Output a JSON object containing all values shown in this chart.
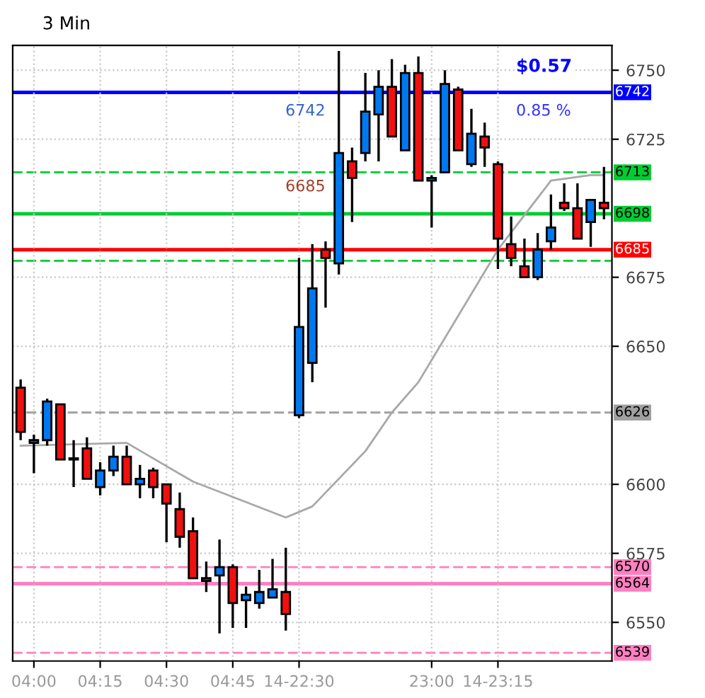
{
  "chart_data": {
    "type": "candlestick",
    "title": "3 Min",
    "categories": [
      null,
      "04:00",
      null,
      null,
      null,
      null,
      "04:15",
      null,
      null,
      null,
      null,
      "04:30",
      null,
      null,
      null,
      null,
      "04:45",
      null,
      null,
      null,
      null,
      "14-22:30",
      null,
      null,
      null,
      null,
      null,
      null,
      null,
      null,
      null,
      "23:00",
      null,
      null,
      null,
      null,
      "14-23:15",
      null,
      null,
      null,
      null,
      null,
      null,
      null,
      null
    ],
    "ohlc": [
      [
        6635,
        6638,
        6616,
        6619
      ],
      [
        6615,
        6618,
        6604,
        6616
      ],
      [
        6616,
        6631,
        6614,
        6630
      ],
      [
        6629,
        6629,
        6609,
        6609
      ],
      [
        6609,
        6616,
        6599,
        6609
      ],
      [
        6613,
        6617,
        6602,
        6602
      ],
      [
        6599,
        6608,
        6596,
        6605
      ],
      [
        6605,
        6614,
        6603,
        6610
      ],
      [
        6610,
        6614,
        6600,
        6600
      ],
      [
        6600,
        6607,
        6595,
        6602
      ],
      [
        6605,
        6606,
        6595,
        6599
      ],
      [
        6600,
        6600,
        6579,
        6593
      ],
      [
        6591,
        6597,
        6577,
        6581
      ],
      [
        6583,
        6588,
        6566,
        6566
      ],
      [
        6566,
        6572,
        6561,
        6565
      ],
      [
        6567,
        6580,
        6546,
        6570
      ],
      [
        6570,
        6571,
        6548,
        6557
      ],
      [
        6558,
        6563,
        6548,
        6560
      ],
      [
        6557,
        6569,
        6555,
        6561
      ],
      [
        6559,
        6573,
        6559,
        6562
      ],
      [
        6561,
        6577,
        6547,
        6553
      ],
      [
        6625,
        6682,
        6624,
        6657
      ],
      [
        6644,
        6687,
        6637,
        6671
      ],
      [
        6685,
        6688,
        6664,
        6682
      ],
      [
        6680,
        6757,
        6676,
        6720
      ],
      [
        6717,
        6722,
        6695,
        6711
      ],
      [
        6720,
        6749,
        6717,
        6735
      ],
      [
        6734,
        6750,
        6717,
        6744
      ],
      [
        6744,
        6754,
        6726,
        6726
      ],
      [
        6721,
        6752,
        6721,
        6749
      ],
      [
        6749,
        6755,
        6710,
        6710
      ],
      [
        6710,
        6712,
        6693,
        6711
      ],
      [
        6713,
        6750,
        6713,
        6745
      ],
      [
        6743,
        6744,
        6721,
        6721
      ],
      [
        6716,
        6736,
        6715,
        6727
      ],
      [
        6726,
        6731,
        6715,
        6722
      ],
      [
        6716,
        6717,
        6678,
        6689
      ],
      [
        6687,
        6697,
        6679,
        6682
      ],
      [
        6679,
        6689,
        6675,
        6675
      ],
      [
        6675,
        6691,
        6674,
        6685
      ],
      [
        6688,
        6705,
        6685,
        6693
      ],
      [
        6702,
        6709,
        6699,
        6700
      ],
      [
        6700,
        6709,
        6689,
        6689
      ],
      [
        6695,
        6703,
        6686,
        6703
      ],
      [
        6702,
        6715,
        6696,
        6700
      ]
    ],
    "colors": [
      "#f01010",
      "#0078f0",
      "#0078f0",
      "#f01010",
      "#0078f0",
      "#f01010",
      "#0078f0",
      "#0078f0",
      "#f01010",
      "#0078f0",
      "#f01010",
      "#f01010",
      "#f01010",
      "#f01010",
      "#f01010",
      "#0078f0",
      "#f01010",
      "#0078f0",
      "#0078f0",
      "#0078f0",
      "#f01010",
      "#0078f0",
      "#0078f0",
      "#f01010",
      "#0078f0",
      "#f01010",
      "#0078f0",
      "#0078f0",
      "#f01010",
      "#0078f0",
      "#f01010",
      "#0078f0",
      "#0078f0",
      "#f01010",
      "#0078f0",
      "#f01010",
      "#f01010",
      "#f01010",
      "#f01010",
      "#0078f0",
      "#0078f0",
      "#f01010",
      "#f01010",
      "#0078f0",
      "#f01010"
    ],
    "series": [
      {
        "type": "line",
        "color": "#a8a8a8",
        "values": [
          6614,
          null,
          null,
          null,
          null,
          null,
          null,
          null,
          6615,
          null,
          null,
          null,
          null,
          6601,
          null,
          null,
          null,
          null,
          null,
          null,
          6588,
          null,
          6592,
          null,
          null,
          null,
          6612,
          null,
          6626,
          null,
          6637,
          null,
          null,
          null,
          null,
          null,
          6685,
          null,
          null,
          null,
          6710,
          null,
          null,
          6712,
          6712
        ]
      }
    ],
    "ylim": [
      6536,
      6759
    ],
    "yticks": [
      6750,
      6725,
      6675,
      6650,
      6600,
      6575,
      6550
    ],
    "ref_lines": [
      {
        "axis": "y",
        "value": 6742,
        "label": "6742",
        "color": "#0000ff",
        "line_style": "solid"
      },
      {
        "axis": "y",
        "value": 6713,
        "label": "6713",
        "color": "#00cc33",
        "line_style": "dashed"
      },
      {
        "axis": "y",
        "value": 6698,
        "label": "6698",
        "color": "#00cc33",
        "line_style": "solid"
      },
      {
        "axis": "y",
        "value": 6685,
        "label": "6685",
        "color": "#ff0000",
        "line_style": "solid"
      },
      {
        "axis": "y",
        "value": 6681,
        "label": null,
        "color": "#00cc33",
        "line_style": "dashed"
      },
      {
        "axis": "y",
        "value": 6626,
        "label": "6626",
        "color": "#a0a0a0",
        "line_style": "dashed"
      },
      {
        "axis": "y",
        "value": 6570,
        "label": "6570",
        "color": "#ff80c0",
        "line_style": "dashed"
      },
      {
        "axis": "y",
        "value": 6564,
        "label": "6564",
        "color": "#ff80c0",
        "line_style": "solid"
      },
      {
        "axis": "y",
        "value": 6539,
        "label": "6539",
        "color": "#ff80c0",
        "line_style": "dashed"
      }
    ],
    "annotations": [
      "$0.57",
      "0.85 %",
      "6742",
      "6685"
    ],
    "grid": true
  }
}
